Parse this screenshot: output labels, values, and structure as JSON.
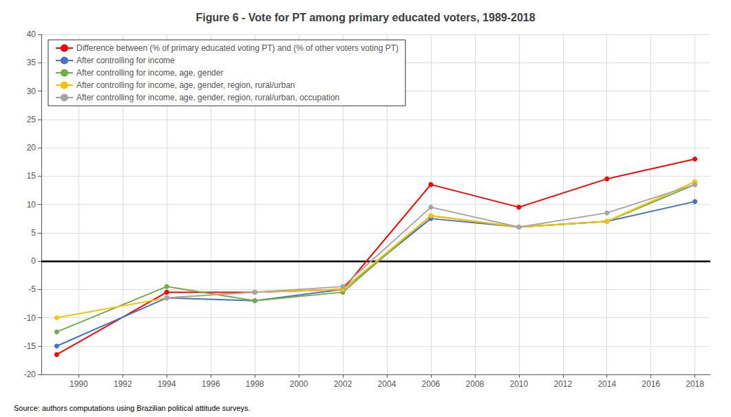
{
  "chart_data": {
    "type": "line",
    "title": "Figure 6 - Vote for PT among primary educated voters, 1989-2018",
    "x": [
      1989,
      1994,
      1998,
      2002,
      2006,
      2010,
      2014,
      2018
    ],
    "series": [
      {
        "name": "Difference between (% of primary educated voting PT) and (% of other voters voting PT)",
        "color": "#ff0000",
        "marker": "circle",
        "values": [
          -16.5,
          -5.5,
          -5.5,
          -5.0,
          13.5,
          9.5,
          14.5,
          18.0
        ]
      },
      {
        "name": "After controlling for income",
        "color": "#4472c4",
        "marker": "circle",
        "values": [
          -15.0,
          -6.5,
          -7.0,
          -5.0,
          7.5,
          6.0,
          7.0,
          10.5
        ]
      },
      {
        "name": "After controlling for income, age, gender",
        "color": "#70ad47",
        "marker": "circle",
        "values": [
          -12.5,
          -4.5,
          -7.0,
          -5.5,
          8.0,
          6.0,
          7.0,
          13.5
        ]
      },
      {
        "name": "After controlling for income, age, gender, region, rural/urban",
        "color": "#ffc000",
        "marker": "circle",
        "values": [
          -10.0,
          -6.5,
          -5.5,
          -5.0,
          8.0,
          6.0,
          7.0,
          14.0
        ]
      },
      {
        "name": "After controlling for income, age, gender, region, rural/urban, occupation",
        "color": "#a5a5a5",
        "marker": "circle",
        "values": [
          null,
          -6.5,
          -5.5,
          -4.5,
          9.5,
          6.0,
          8.5,
          13.5
        ]
      }
    ],
    "xlim": [
      1988.3,
      2018.7
    ],
    "xticks": [
      1990,
      1992,
      1994,
      1996,
      1998,
      2000,
      2002,
      2004,
      2006,
      2008,
      2010,
      2012,
      2014,
      2016,
      2018
    ],
    "ylim": [
      -20,
      40
    ],
    "yticks": [
      -20,
      -15,
      -10,
      -5,
      0,
      5,
      10,
      15,
      20,
      25,
      30,
      35,
      40
    ],
    "grid": true,
    "legend": "upper left",
    "annotations": [
      "Source: authors computations using Brazilian political attitude surveys."
    ]
  }
}
